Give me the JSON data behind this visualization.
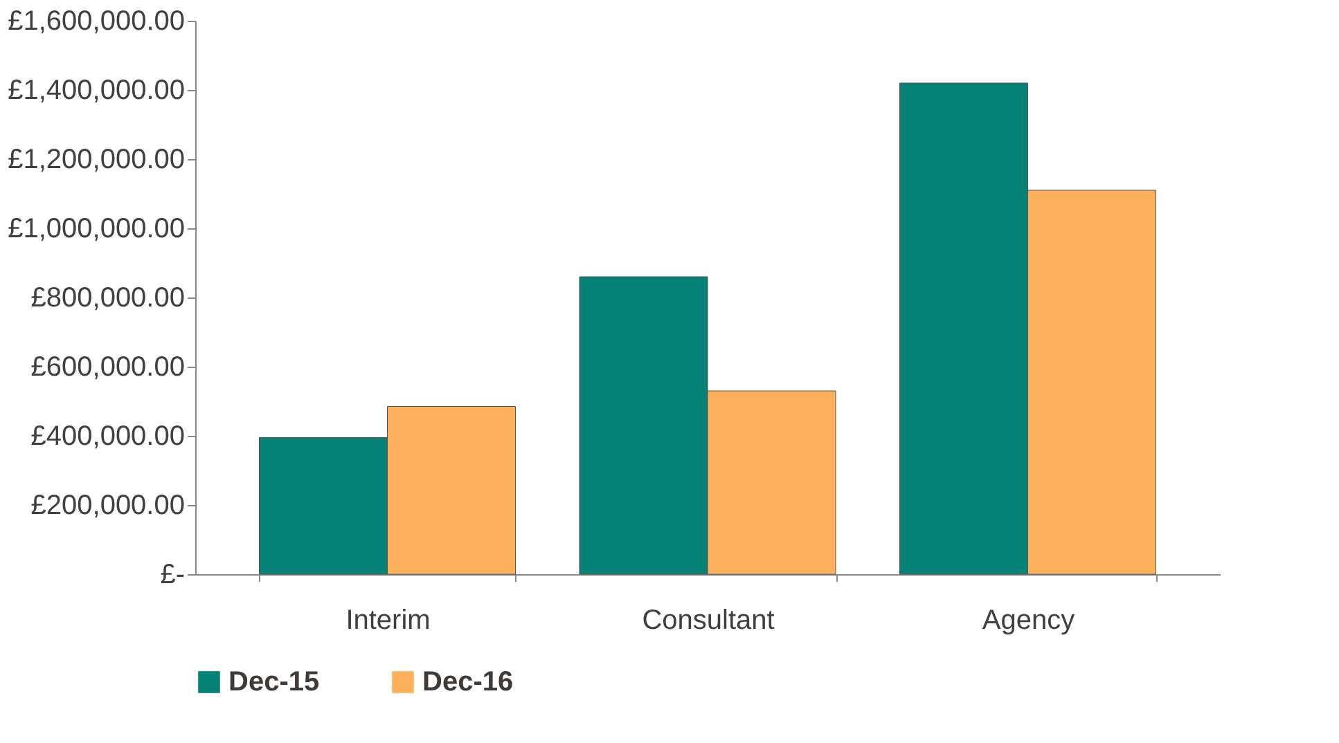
{
  "chart_data": {
    "type": "bar",
    "categories": [
      "Interim",
      "Consultant",
      "Agency"
    ],
    "series": [
      {
        "name": "Dec-15",
        "color": "#078277",
        "values": [
          395000,
          860000,
          1420000
        ]
      },
      {
        "name": "Dec-16",
        "color": "#fdb15c",
        "values": [
          485000,
          530000,
          1110000
        ]
      }
    ],
    "ylim": [
      0,
      1600000
    ],
    "yticks": [
      {
        "value": 0,
        "label": "£-"
      },
      {
        "value": 200000,
        "label": "£200,000.00"
      },
      {
        "value": 400000,
        "label": "£400,000.00"
      },
      {
        "value": 600000,
        "label": "£600,000.00"
      },
      {
        "value": 800000,
        "label": "£800,000.00"
      },
      {
        "value": 1000000,
        "label": "£1,000,000.00"
      },
      {
        "value": 1200000,
        "label": "£1,200,000.00"
      },
      {
        "value": 1400000,
        "label": "£1,400,000.00"
      },
      {
        "value": 1600000,
        "label": "£1,600,000.00"
      }
    ],
    "grid": false,
    "legend": "bottom"
  }
}
